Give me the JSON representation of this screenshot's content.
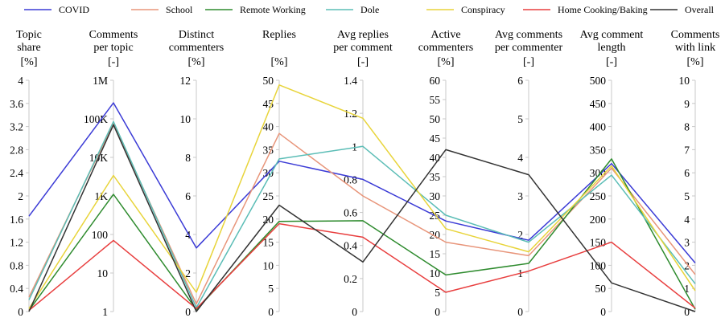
{
  "chart_data": {
    "type": "parallel-coordinates",
    "legend_placement": "top",
    "grid": false,
    "series_names": [
      "COVID",
      "School",
      "Remote Working",
      "Dole",
      "Conspiracy",
      "Home Cooking/Baking",
      "Overall"
    ],
    "axes": [
      {
        "title": [
          "Topic",
          "share",
          "[%]"
        ],
        "scale": "linear",
        "range": [
          0,
          4
        ],
        "ticks": [
          "0",
          "0.4",
          "0.8",
          "1.2",
          "1.6",
          "2",
          "2.4",
          "2.8",
          "3.2",
          "3.6",
          "4"
        ],
        "tick_values": [
          0,
          0.4,
          0.8,
          1.2,
          1.6,
          2,
          2.4,
          2.8,
          3.2,
          3.6,
          4
        ]
      },
      {
        "title": [
          "Comments",
          "per topic",
          "[-]"
        ],
        "scale": "log",
        "range": [
          1,
          1000000
        ],
        "ticks": [
          "1",
          "10",
          "100",
          "1K",
          "10K",
          "100K",
          "1M"
        ],
        "tick_values": [
          1,
          10,
          100,
          1000,
          10000,
          100000,
          1000000
        ]
      },
      {
        "title": [
          "Distinct",
          "commenters",
          "[%]"
        ],
        "scale": "linear",
        "range": [
          0,
          12
        ],
        "ticks": [
          "0",
          "2",
          "4",
          "6",
          "8",
          "10",
          "12"
        ],
        "tick_values": [
          0,
          2,
          4,
          6,
          8,
          10,
          12
        ]
      },
      {
        "title": [
          "Replies",
          "",
          "[%]"
        ],
        "scale": "linear",
        "range": [
          0,
          50
        ],
        "ticks": [
          "0",
          "5",
          "10",
          "15",
          "20",
          "25",
          "30",
          "35",
          "40",
          "45",
          "50"
        ],
        "tick_values": [
          0,
          5,
          10,
          15,
          20,
          25,
          30,
          35,
          40,
          45,
          50
        ]
      },
      {
        "title": [
          "Avg replies",
          "per comment",
          "[-]"
        ],
        "scale": "linear",
        "range": [
          0,
          1.4
        ],
        "ticks": [
          "0",
          "0.2",
          "0.4",
          "0.6",
          "0.8",
          "1",
          "1.2",
          "1.4"
        ],
        "tick_values": [
          0,
          0.2,
          0.4,
          0.6,
          0.8,
          1,
          1.2,
          1.4
        ]
      },
      {
        "title": [
          "Active",
          "commenters",
          "[%]"
        ],
        "scale": "linear",
        "range": [
          0,
          60
        ],
        "ticks": [
          "0",
          "5",
          "10",
          "15",
          "20",
          "25",
          "30",
          "35",
          "40",
          "45",
          "50",
          "55",
          "60"
        ],
        "tick_values": [
          0,
          5,
          10,
          15,
          20,
          25,
          30,
          35,
          40,
          45,
          50,
          55,
          60
        ]
      },
      {
        "title": [
          "Avg comments",
          "per commenter",
          "[-]"
        ],
        "scale": "linear",
        "range": [
          0,
          6
        ],
        "ticks": [
          "0",
          "1",
          "2",
          "3",
          "4",
          "5",
          "6"
        ],
        "tick_values": [
          0,
          1,
          2,
          3,
          4,
          5,
          6
        ]
      },
      {
        "title": [
          "Avg comment",
          "length",
          "[-]"
        ],
        "scale": "linear",
        "range": [
          0,
          500
        ],
        "ticks": [
          "0",
          "50",
          "100",
          "150",
          "200",
          "250",
          "300",
          "350",
          "400",
          "450",
          "500"
        ],
        "tick_values": [
          0,
          50,
          100,
          150,
          200,
          250,
          300,
          350,
          400,
          450,
          500
        ]
      },
      {
        "title": [
          "Comments",
          "with link",
          "[%]"
        ],
        "scale": "linear",
        "range": [
          0,
          10
        ],
        "ticks": [
          "0",
          "1",
          "2",
          "3",
          "4",
          "5",
          "6",
          "7",
          "8",
          "9",
          "10"
        ],
        "tick_values": [
          0,
          1,
          2,
          3,
          4,
          5,
          6,
          7,
          8,
          9,
          10
        ]
      }
    ],
    "series": [
      {
        "name": "COVID",
        "color": "#3b3bd6",
        "values": [
          1.65,
          260000,
          3.3,
          32.5,
          0.8,
          23.5,
          1.85,
          320,
          2.1
        ]
      },
      {
        "name": "School",
        "color": "#e8957a",
        "values": [
          0.25,
          75000,
          0.4,
          38.5,
          0.7,
          18,
          1.45,
          310,
          1.6
        ]
      },
      {
        "name": "Remote Working",
        "color": "#2e8b2e",
        "values": [
          0.02,
          1100,
          0.1,
          19.5,
          0.55,
          9.5,
          1.25,
          330,
          0.1
        ]
      },
      {
        "name": "Dole",
        "color": "#5bbdb6",
        "values": [
          0.2,
          85000,
          0.2,
          33,
          1.0,
          25,
          1.8,
          295,
          1.2
        ]
      },
      {
        "name": "Conspiracy",
        "color": "#e8d43a",
        "values": [
          0.05,
          3400,
          1.0,
          49,
          1.17,
          21.5,
          1.55,
          315,
          0.9
        ]
      },
      {
        "name": "Home Cooking/Baking",
        "color": "#e83e3e",
        "values": [
          0.02,
          70,
          0.15,
          19,
          0.45,
          5,
          1.05,
          150,
          0.15
        ]
      },
      {
        "name": "Overall",
        "color": "#333333",
        "values": [
          0.0,
          70000,
          0.0,
          23,
          0.3,
          42,
          3.55,
          62,
          0.0
        ]
      }
    ]
  }
}
